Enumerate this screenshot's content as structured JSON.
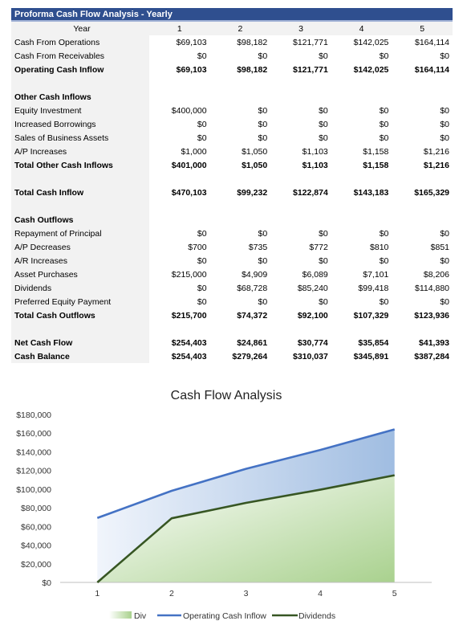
{
  "sheet": {
    "title": "Proforma Cash Flow Analysis - Yearly",
    "year_label": "Year",
    "years": [
      "1",
      "2",
      "3",
      "4",
      "5"
    ],
    "rows": [
      {
        "label": "Cash From Operations",
        "values": [
          "$69,103",
          "$98,182",
          "$121,771",
          "$142,025",
          "$164,114"
        ]
      },
      {
        "label": "Cash From Receivables",
        "values": [
          "$0",
          "$0",
          "$0",
          "$0",
          "$0"
        ]
      },
      {
        "label": "Operating Cash Inflow",
        "values": [
          "$69,103",
          "$98,182",
          "$121,771",
          "$142,025",
          "$164,114"
        ],
        "bold": true
      },
      {
        "label": "",
        "values": [
          "",
          "",
          "",
          "",
          ""
        ]
      },
      {
        "label": "Other Cash Inflows",
        "values": [
          "",
          "",
          "",
          "",
          ""
        ],
        "bold": true
      },
      {
        "label": "Equity Investment",
        "values": [
          "$400,000",
          "$0",
          "$0",
          "$0",
          "$0"
        ]
      },
      {
        "label": "Increased Borrowings",
        "values": [
          "$0",
          "$0",
          "$0",
          "$0",
          "$0"
        ]
      },
      {
        "label": "Sales of Business Assets",
        "values": [
          "$0",
          "$0",
          "$0",
          "$0",
          "$0"
        ]
      },
      {
        "label": "A/P Increases",
        "values": [
          "$1,000",
          "$1,050",
          "$1,103",
          "$1,158",
          "$1,216"
        ]
      },
      {
        "label": "Total Other Cash Inflows",
        "values": [
          "$401,000",
          "$1,050",
          "$1,103",
          "$1,158",
          "$1,216"
        ],
        "bold": true
      },
      {
        "label": "",
        "values": [
          "",
          "",
          "",
          "",
          ""
        ]
      },
      {
        "label": "Total Cash Inflow",
        "values": [
          "$470,103",
          "$99,232",
          "$122,874",
          "$143,183",
          "$165,329"
        ],
        "bold": true
      },
      {
        "label": "",
        "values": [
          "",
          "",
          "",
          "",
          ""
        ]
      },
      {
        "label": "Cash Outflows",
        "values": [
          "",
          "",
          "",
          "",
          ""
        ],
        "bold": true
      },
      {
        "label": "Repayment of Principal",
        "values": [
          "$0",
          "$0",
          "$0",
          "$0",
          "$0"
        ]
      },
      {
        "label": "A/P Decreases",
        "values": [
          "$700",
          "$735",
          "$772",
          "$810",
          "$851"
        ]
      },
      {
        "label": "A/R Increases",
        "values": [
          "$0",
          "$0",
          "$0",
          "$0",
          "$0"
        ]
      },
      {
        "label": "Asset Purchases",
        "values": [
          "$215,000",
          "$4,909",
          "$6,089",
          "$7,101",
          "$8,206"
        ]
      },
      {
        "label": "Dividends",
        "values": [
          "$0",
          "$68,728",
          "$85,240",
          "$99,418",
          "$114,880"
        ]
      },
      {
        "label": "Preferred Equity Payment",
        "values": [
          "$0",
          "$0",
          "$0",
          "$0",
          "$0"
        ]
      },
      {
        "label": "Total Cash Outflows",
        "values": [
          "$215,700",
          "$74,372",
          "$92,100",
          "$107,329",
          "$123,936"
        ],
        "bold": true
      },
      {
        "label": "",
        "values": [
          "",
          "",
          "",
          "",
          ""
        ]
      },
      {
        "label": "Net Cash Flow",
        "values": [
          "$254,403",
          "$24,861",
          "$30,774",
          "$35,854",
          "$41,393"
        ],
        "bold": true
      },
      {
        "label": "Cash Balance",
        "values": [
          "$254,403",
          "$279,264",
          "$310,037",
          "$345,891",
          "$387,284"
        ],
        "bold": true
      }
    ]
  },
  "chart_data": {
    "type": "area",
    "title": "Cash Flow Analysis",
    "x": [
      "1",
      "2",
      "3",
      "4",
      "5"
    ],
    "ylim": [
      0,
      180000
    ],
    "y_ticks": [
      0,
      20000,
      40000,
      60000,
      80000,
      100000,
      120000,
      140000,
      160000,
      180000
    ],
    "y_tick_labels": [
      "$0",
      "$20,000",
      "$40,000",
      "$60,000",
      "$80,000",
      "$100,000",
      "$120,000",
      "$140,000",
      "$160,000",
      "$180,000"
    ],
    "grid": false,
    "legend_position": "bottom",
    "series": [
      {
        "name": "Div",
        "kind": "area",
        "values": [
          0,
          68728,
          85240,
          99418,
          114880
        ],
        "color": "#a9d18e"
      },
      {
        "name": "Operating Cash Inflow",
        "kind": "line-area",
        "values": [
          69103,
          98182,
          121771,
          142025,
          164114
        ],
        "color": "#4472c4"
      },
      {
        "name": "Dividends",
        "kind": "line",
        "values": [
          0,
          68728,
          85240,
          99418,
          114880
        ],
        "color": "#375623"
      }
    ]
  }
}
